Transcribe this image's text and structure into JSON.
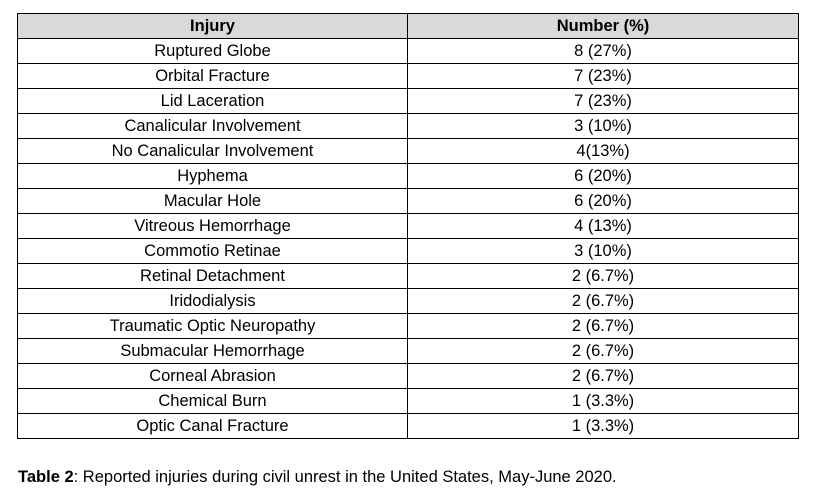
{
  "table": {
    "headers": [
      "Injury",
      "Number (%)"
    ],
    "rows": [
      [
        "Ruptured Globe",
        "8 (27%)"
      ],
      [
        "Orbital Fracture",
        "7 (23%)"
      ],
      [
        "Lid Laceration",
        "7 (23%)"
      ],
      [
        "Canalicular Involvement",
        "3 (10%)"
      ],
      [
        "No Canalicular Involvement",
        "4(13%)"
      ],
      [
        "Hyphema",
        "6 (20%)"
      ],
      [
        "Macular Hole",
        "6 (20%)"
      ],
      [
        "Vitreous Hemorrhage",
        "4 (13%)"
      ],
      [
        "Commotio Retinae",
        "3 (10%)"
      ],
      [
        "Retinal Detachment",
        "2 (6.7%)"
      ],
      [
        "Iridodialysis",
        "2 (6.7%)"
      ],
      [
        "Traumatic Optic Neuropathy",
        "2 (6.7%)"
      ],
      [
        "Submacular Hemorrhage",
        "2 (6.7%)"
      ],
      [
        "Corneal Abrasion",
        "2 (6.7%)"
      ],
      [
        "Chemical Burn",
        "1 (3.3%)"
      ],
      [
        "Optic Canal Fracture",
        "1 (3.3%)"
      ]
    ]
  },
  "caption": {
    "label": "Table 2",
    "text": ": Reported injuries during civil unrest in the United States, May-June 2020."
  },
  "colors": {
    "header_bg": "#d9d9d9",
    "border": "#000000"
  }
}
